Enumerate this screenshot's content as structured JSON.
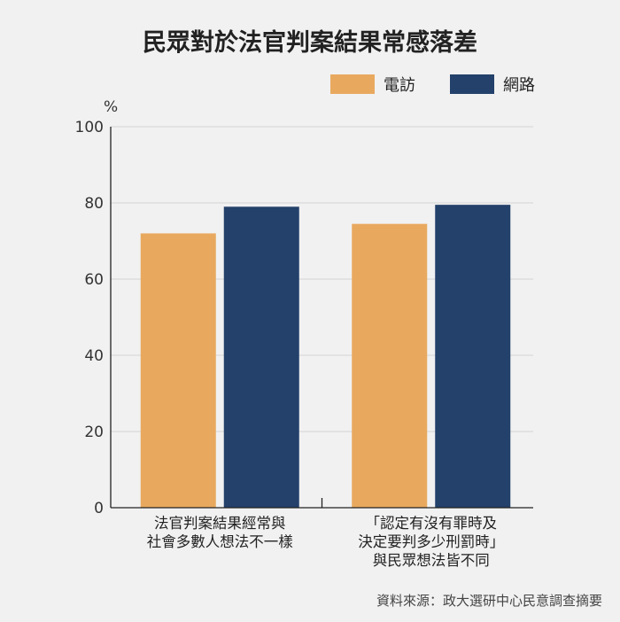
{
  "title": "民眾對於法官判案結果常感落差",
  "source": "資料來源：政大選研中心民意調查摘要",
  "colors": {
    "phone": "#e8a95f",
    "web": "#23416a",
    "background": "#f1f1f1"
  },
  "chart_data": {
    "type": "bar",
    "ylabel": "%",
    "ylim": [
      0,
      100
    ],
    "yticks": [
      0,
      20,
      40,
      60,
      80,
      100
    ],
    "grid": true,
    "legend_position": "top-right",
    "categories": [
      [
        "法官判案結果經常與",
        "社會多數人想法不一樣"
      ],
      [
        "「認定有沒有罪時及",
        "決定要判多少刑罰時」",
        "與民眾想法皆不同"
      ]
    ],
    "series": [
      {
        "name": "電訪",
        "color": "#e8a95f",
        "values": [
          72,
          74.5
        ]
      },
      {
        "name": "網路",
        "color": "#23416a",
        "values": [
          79,
          79.5
        ]
      }
    ]
  }
}
